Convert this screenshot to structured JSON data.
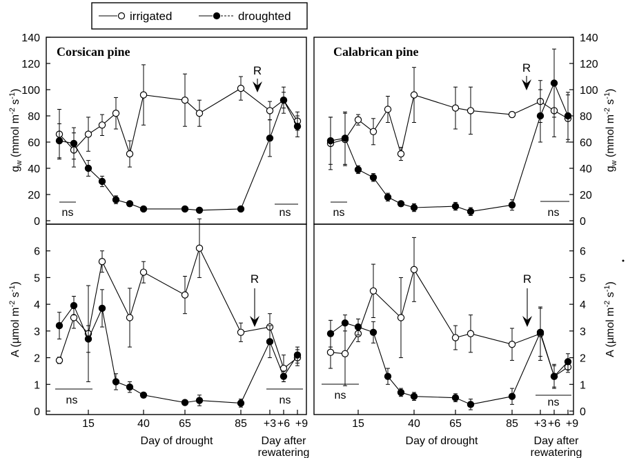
{
  "legend": {
    "items": [
      "irrigated",
      "droughted"
    ]
  },
  "panels": [
    {
      "title": "Corsican  pine"
    },
    {
      "title": "Calabrican  pine"
    }
  ],
  "annotations": {
    "rewater_marker": "R",
    "ns_label": "ns"
  },
  "axes": {
    "gw": {
      "label": "g",
      "sub": "w",
      "unit": " (mmol m",
      "sup1": "-2",
      "mid": " s",
      "sup2": "-1",
      "end": ")",
      "ticks": [
        "0",
        "20",
        "40",
        "60",
        "80",
        "100",
        "120",
        "140"
      ]
    },
    "A": {
      "label": "A  (",
      "mu": "µ",
      "unit": "mol m",
      "sup1": "-2",
      "mid": " s",
      "sup2": "-1",
      "end": ")",
      "ticks": [
        "0",
        "1",
        "2",
        "3",
        "4",
        "5",
        "6"
      ]
    },
    "x": {
      "label": "Day of drought",
      "label2_line1": "Day after",
      "label2_line2": "rewatering",
      "ticks": [
        "15",
        "40",
        "65",
        "85",
        "+3",
        "+6",
        "+9"
      ]
    }
  },
  "chart_data": [
    {
      "type": "line",
      "panel": "Corsican pine",
      "ylabel": "gw (mmol m-2 s-1)",
      "ylim": [
        0,
        140
      ],
      "x": [
        "5",
        "10",
        "15",
        "20",
        "25",
        "33",
        "40",
        "65",
        "72",
        "92",
        "+3",
        "+6",
        "+9"
      ],
      "series": [
        {
          "name": "irrigated",
          "marker": "open",
          "values": [
            66,
            54,
            66,
            73,
            82,
            51,
            96,
            92,
            82,
            101,
            84,
            92,
            76
          ],
          "errors": [
            19,
            13,
            13,
            8,
            12,
            10,
            23,
            20,
            10,
            9,
            7,
            6,
            7
          ]
        },
        {
          "name": "droughted",
          "marker": "filled",
          "values": [
            61,
            59,
            40,
            30,
            16,
            13,
            9,
            9,
            8,
            9,
            63,
            92,
            72
          ],
          "errors": [
            13,
            12,
            6,
            4,
            3,
            2,
            1,
            1,
            1,
            2,
            14,
            10,
            8
          ]
        }
      ]
    },
    {
      "type": "line",
      "panel": "Calabrican pine",
      "ylabel": "gw (mmol m-2 s-1)",
      "ylim": [
        0,
        140
      ],
      "x": [
        "5",
        "10",
        "15",
        "20",
        "25",
        "33",
        "40",
        "65",
        "72",
        "92",
        "+3",
        "+6",
        "+9"
      ],
      "series": [
        {
          "name": "irrigated",
          "marker": "open",
          "values": [
            59,
            62,
            77,
            68,
            85,
            51,
            96,
            86,
            84,
            81,
            91,
            84,
            78
          ],
          "errors": [
            20,
            20,
            4,
            10,
            10,
            5,
            21,
            16,
            18,
            2,
            16,
            20,
            18
          ]
        },
        {
          "name": "droughted",
          "marker": "filled",
          "values": [
            61,
            63,
            39,
            33,
            18,
            13,
            10,
            11,
            7,
            12,
            80,
            105,
            80
          ],
          "errors": [
            18,
            20,
            3,
            3,
            3,
            2,
            3,
            3,
            3,
            4,
            20,
            26,
            18
          ]
        }
      ]
    },
    {
      "type": "line",
      "panel": "Corsican pine",
      "ylabel": "A (µmol m-2 s-1)",
      "ylim": [
        0,
        7
      ],
      "x": [
        "5",
        "10",
        "15",
        "20",
        "25",
        "33",
        "40",
        "65",
        "72",
        "92",
        "+3",
        "+6",
        "+9"
      ],
      "series": [
        {
          "name": "irrigated",
          "marker": "open",
          "values": [
            1.9,
            3.5,
            2.9,
            5.6,
            null,
            3.5,
            5.2,
            4.35,
            6.1,
            2.95,
            3.15,
            1.6,
            2.0
          ],
          "errors": [
            0.12,
            0.4,
            1.8,
            0.4,
            null,
            1.1,
            0.4,
            0.7,
            1.1,
            0.35,
            0.5,
            0.5,
            0.3
          ]
        },
        {
          "name": "droughted",
          "marker": "filled",
          "values": [
            3.2,
            3.95,
            2.7,
            3.85,
            1.1,
            0.9,
            0.6,
            0.32,
            0.4,
            0.3,
            2.6,
            1.3,
            2.1
          ],
          "errors": [
            0.5,
            0.35,
            0.5,
            0.7,
            0.3,
            0.2,
            0.1,
            0.05,
            0.2,
            0.15,
            0.6,
            0.2,
            0.3
          ]
        }
      ]
    },
    {
      "type": "line",
      "panel": "Calabrican pine",
      "ylabel": "A (µmol m-2 s-1)",
      "ylim": [
        0,
        7
      ],
      "x": [
        "5",
        "10",
        "15",
        "20",
        "25",
        "33",
        "40",
        "65",
        "72",
        "92",
        "+3",
        "+6",
        "+9"
      ],
      "series": [
        {
          "name": "irrigated",
          "marker": "open",
          "values": [
            2.2,
            2.15,
            2.9,
            4.5,
            null,
            3.5,
            5.3,
            2.75,
            2.9,
            2.5,
            2.9,
            1.3,
            1.65
          ],
          "errors": [
            0.6,
            1.2,
            0.3,
            1.0,
            null,
            1.5,
            1.2,
            0.45,
            0.7,
            0.6,
            1.0,
            0.45,
            0.2
          ]
        },
        {
          "name": "droughted",
          "marker": "filled",
          "values": [
            2.9,
            3.3,
            3.15,
            2.95,
            1.3,
            0.7,
            0.55,
            0.5,
            0.25,
            0.55,
            2.95,
            1.3,
            1.85
          ],
          "errors": [
            0.5,
            0.3,
            0.3,
            0.4,
            0.3,
            0.15,
            0.15,
            0.15,
            0.2,
            0.3,
            0.9,
            0.4,
            0.3
          ]
        }
      ]
    }
  ]
}
